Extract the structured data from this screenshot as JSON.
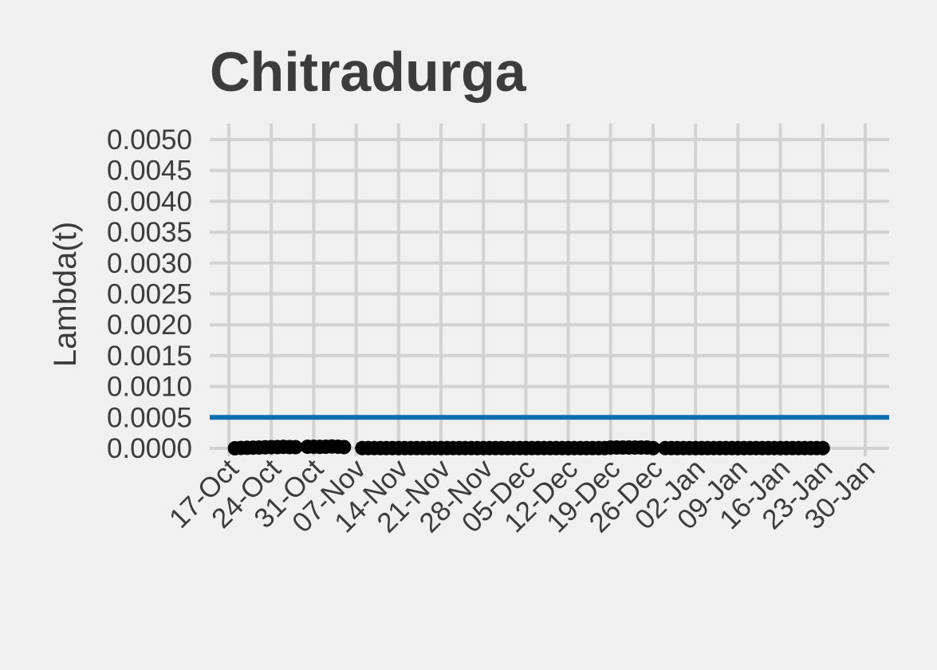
{
  "chart_data": {
    "type": "line",
    "title": "Chitradurga",
    "xlabel": "",
    "ylabel": "Lambda(t)",
    "x_axis": "date",
    "xlim": [
      "2020-10-13",
      "2021-01-31"
    ],
    "ylim": [
      0,
      0.005
    ],
    "grid": true,
    "legend": "none",
    "x_ticks": [
      "17-Oct",
      "24-Oct",
      "31-Oct",
      "07-Nov",
      "14-Nov",
      "21-Nov",
      "28-Nov",
      "05-Dec",
      "12-Dec",
      "19-Dec",
      "26-Dec",
      "02-Jan",
      "09-Jan",
      "16-Jan",
      "23-Jan",
      "30-Jan"
    ],
    "y_ticks": [
      "0.0050",
      "0.0045",
      "0.0040",
      "0.0035",
      "0.0030",
      "0.0025",
      "0.0020",
      "0.0015",
      "0.0010",
      "0.0005",
      "0.0000"
    ],
    "threshold": {
      "value": 0.0005,
      "color": "#0b6fb0"
    },
    "series": [
      {
        "color": "#000000",
        "segments": [
          {
            "start": "2020-10-18",
            "end": "2020-10-28",
            "values": [
              0.0,
              5e-06,
              8e-06,
              1e-05,
              1.2e-05,
              1.5e-05,
              1.8e-05,
              2e-05,
              2.2e-05,
              2e-05,
              1.8e-05
            ]
          },
          {
            "start": "2020-10-30",
            "end": "2020-11-05",
            "values": [
              2.5e-05,
              2.5e-05,
              2.2e-05,
              2.5e-05,
              2.8e-05,
              2.5e-05,
              2e-05
            ]
          },
          {
            "start": "2020-11-08",
            "end": "2020-12-26",
            "constant": 3e-06,
            "bump": {
              "start": "2020-12-19",
              "end": "2020-12-25",
              "value": 1.2e-05
            }
          },
          {
            "start": "2020-12-28",
            "end": "2021-01-23",
            "constant": 2e-06
          }
        ]
      }
    ]
  }
}
